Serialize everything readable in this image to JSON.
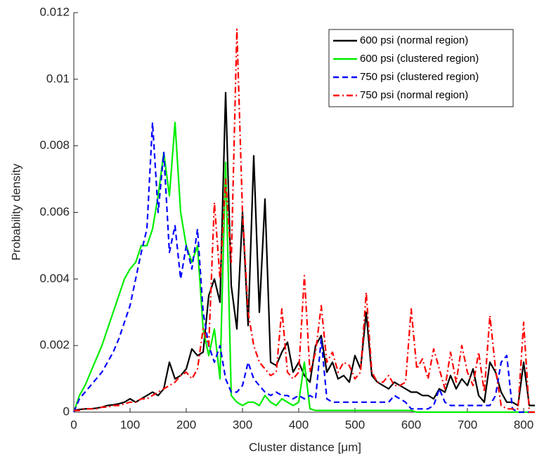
{
  "chart_data": {
    "type": "line",
    "xlabel": "Cluster distance [μm]",
    "ylabel": "Probability density",
    "x": [
      0,
      10,
      20,
      30,
      40,
      50,
      60,
      70,
      80,
      90,
      100,
      110,
      120,
      130,
      140,
      150,
      160,
      170,
      180,
      190,
      200,
      210,
      220,
      230,
      240,
      250,
      260,
      270,
      280,
      290,
      300,
      310,
      320,
      330,
      340,
      350,
      360,
      370,
      380,
      390,
      400,
      410,
      420,
      430,
      440,
      450,
      460,
      470,
      480,
      490,
      500,
      510,
      520,
      530,
      540,
      550,
      560,
      570,
      580,
      590,
      600,
      610,
      620,
      630,
      640,
      650,
      660,
      670,
      680,
      690,
      700,
      710,
      720,
      730,
      740,
      750,
      760,
      770,
      780,
      790,
      800,
      810,
      820
    ],
    "series": [
      {
        "name": "600 psi (normal region)",
        "color": "#000000",
        "linestyle": "solid",
        "values": [
          5e-05,
          8e-05,
          0.0001,
          0.0001,
          0.00012,
          0.00015,
          0.0002,
          0.00022,
          0.00025,
          0.0003,
          0.0004,
          0.0003,
          0.0004,
          0.0005,
          0.0006,
          0.0005,
          0.0007,
          0.0015,
          0.001,
          0.0011,
          0.0013,
          0.0019,
          0.0017,
          0.0018,
          0.0035,
          0.004,
          0.0033,
          0.0096,
          0.0038,
          0.0025,
          0.006,
          0.0026,
          0.0077,
          0.003,
          0.0064,
          0.0015,
          0.0014,
          0.0018,
          0.0021,
          0.0012,
          0.0015,
          0.0011,
          0.0009,
          0.002,
          0.0023,
          0.0012,
          0.0015,
          0.001,
          0.0011,
          0.0009,
          0.0017,
          0.0013,
          0.003,
          0.0011,
          0.0009,
          0.0008,
          0.0007,
          0.0009,
          0.0008,
          0.0007,
          0.0006,
          0.0006,
          0.0005,
          0.0005,
          0.0004,
          0.0007,
          0.0006,
          0.0011,
          0.0007,
          0.001,
          0.0008,
          0.0013,
          0.0005,
          0.0003,
          0.0015,
          0.0012,
          0.0006,
          0.0003,
          0.0003,
          0.0002,
          0.0015,
          0.0002,
          0.0002
        ]
      },
      {
        "name": "600 psi (clustered region)",
        "color": "#00ee00",
        "linestyle": "solid",
        "values": [
          0,
          0.0005,
          0.0008,
          0.0012,
          0.0016,
          0.002,
          0.0025,
          0.003,
          0.0035,
          0.004,
          0.0043,
          0.0045,
          0.005,
          0.005,
          0.0055,
          0.0065,
          0.0078,
          0.0065,
          0.0087,
          0.006,
          0.005,
          0.0045,
          0.005,
          0.0025,
          0.0017,
          0.0025,
          0.001,
          0.0075,
          0.0005,
          0.0003,
          0.0002,
          0.0003,
          0.0003,
          0.0002,
          0.0005,
          0.0003,
          0.0002,
          0.0004,
          0.0003,
          0.0002,
          0.0003,
          0.0015,
          0.0001,
          5e-05,
          5e-05,
          5e-05,
          5e-05,
          5e-05,
          5e-05,
          5e-05,
          5e-05,
          5e-05,
          5e-05,
          5e-05,
          5e-05,
          5e-05,
          5e-05,
          5e-05,
          5e-05,
          5e-05,
          5e-05,
          0,
          0,
          0,
          0,
          0,
          0,
          0,
          0,
          0,
          0,
          0,
          0,
          0,
          0,
          0,
          0,
          0,
          0,
          0,
          0,
          0,
          0
        ]
      },
      {
        "name": "750 psi (clustered region)",
        "color": "#0000ff",
        "linestyle": "dashed",
        "values": [
          0,
          0.0004,
          0.0006,
          0.0008,
          0.001,
          0.0012,
          0.0015,
          0.0018,
          0.0022,
          0.0027,
          0.0032,
          0.004,
          0.0048,
          0.0055,
          0.0087,
          0.006,
          0.0078,
          0.0048,
          0.0056,
          0.004,
          0.005,
          0.0043,
          0.0055,
          0.003,
          0.002,
          0.0015,
          0.002,
          0.001,
          0.0006,
          0.0006,
          0.0008,
          0.0015,
          0.001,
          0.0008,
          0.0006,
          0.0005,
          0.0006,
          0.0005,
          0.0005,
          0.0004,
          0.0005,
          0.0004,
          0.0005,
          0.0004,
          0.0022,
          0.0004,
          0.0003,
          0.0003,
          0.0003,
          0.0003,
          0.0003,
          0.0003,
          0.0003,
          0.0003,
          0.0003,
          0.0003,
          0.0003,
          0.0005,
          0.0004,
          0.0003,
          0.0001,
          0.0001,
          0.0001,
          0.0001,
          0.0002,
          0.0007,
          0.0003,
          0.0002,
          0.0002,
          0.0002,
          0.0002,
          0.0002,
          0.0002,
          0.0002,
          0.0002,
          0.0005,
          0.0015,
          0.0017,
          0.0001,
          0,
          0,
          0,
          0
        ]
      },
      {
        "name": "750 psi (normal region)",
        "color": "#ff0000",
        "linestyle": "dashdot",
        "values": [
          5e-05,
          5e-05,
          0.0001,
          0.0001,
          0.0001,
          0.00015,
          0.00015,
          0.0002,
          0.0002,
          0.00025,
          0.0003,
          0.0003,
          0.0004,
          0.0004,
          0.0005,
          0.0006,
          0.0007,
          0.0008,
          0.0009,
          0.0011,
          0.0012,
          0.001,
          0.0013,
          0.0025,
          0.002,
          0.0063,
          0.004,
          0.007,
          0.0045,
          0.0115,
          0.006,
          0.003,
          0.002,
          0.0015,
          0.0013,
          0.0011,
          0.0012,
          0.0031,
          0.0012,
          0.001,
          0.0012,
          0.0041,
          0.0012,
          0.0018,
          0.0032,
          0.0015,
          0.0018,
          0.0012,
          0.0015,
          0.0014,
          0.001,
          0.0012,
          0.0036,
          0.0012,
          0.0009,
          0.0009,
          0.0011,
          0.0008,
          0.0008,
          0.0009,
          0.0031,
          0.0013,
          0.0016,
          0.001,
          0.0019,
          0.0013,
          0.0007,
          0.0018,
          0.0009,
          0.002,
          0.0012,
          0.0008,
          0.0018,
          0.0006,
          0.0029,
          0.0013,
          0.0002,
          0.0001,
          0.0001,
          0.0001,
          0.0027,
          0,
          0
        ]
      }
    ],
    "xlim": [
      0,
      820
    ],
    "ylim": [
      0,
      0.012
    ],
    "xticks": [
      0,
      100,
      200,
      300,
      400,
      500,
      600,
      700,
      800
    ],
    "yticks": [
      0,
      0.002,
      0.004,
      0.006,
      0.008,
      0.01,
      0.012
    ],
    "legend": "upper right"
  }
}
